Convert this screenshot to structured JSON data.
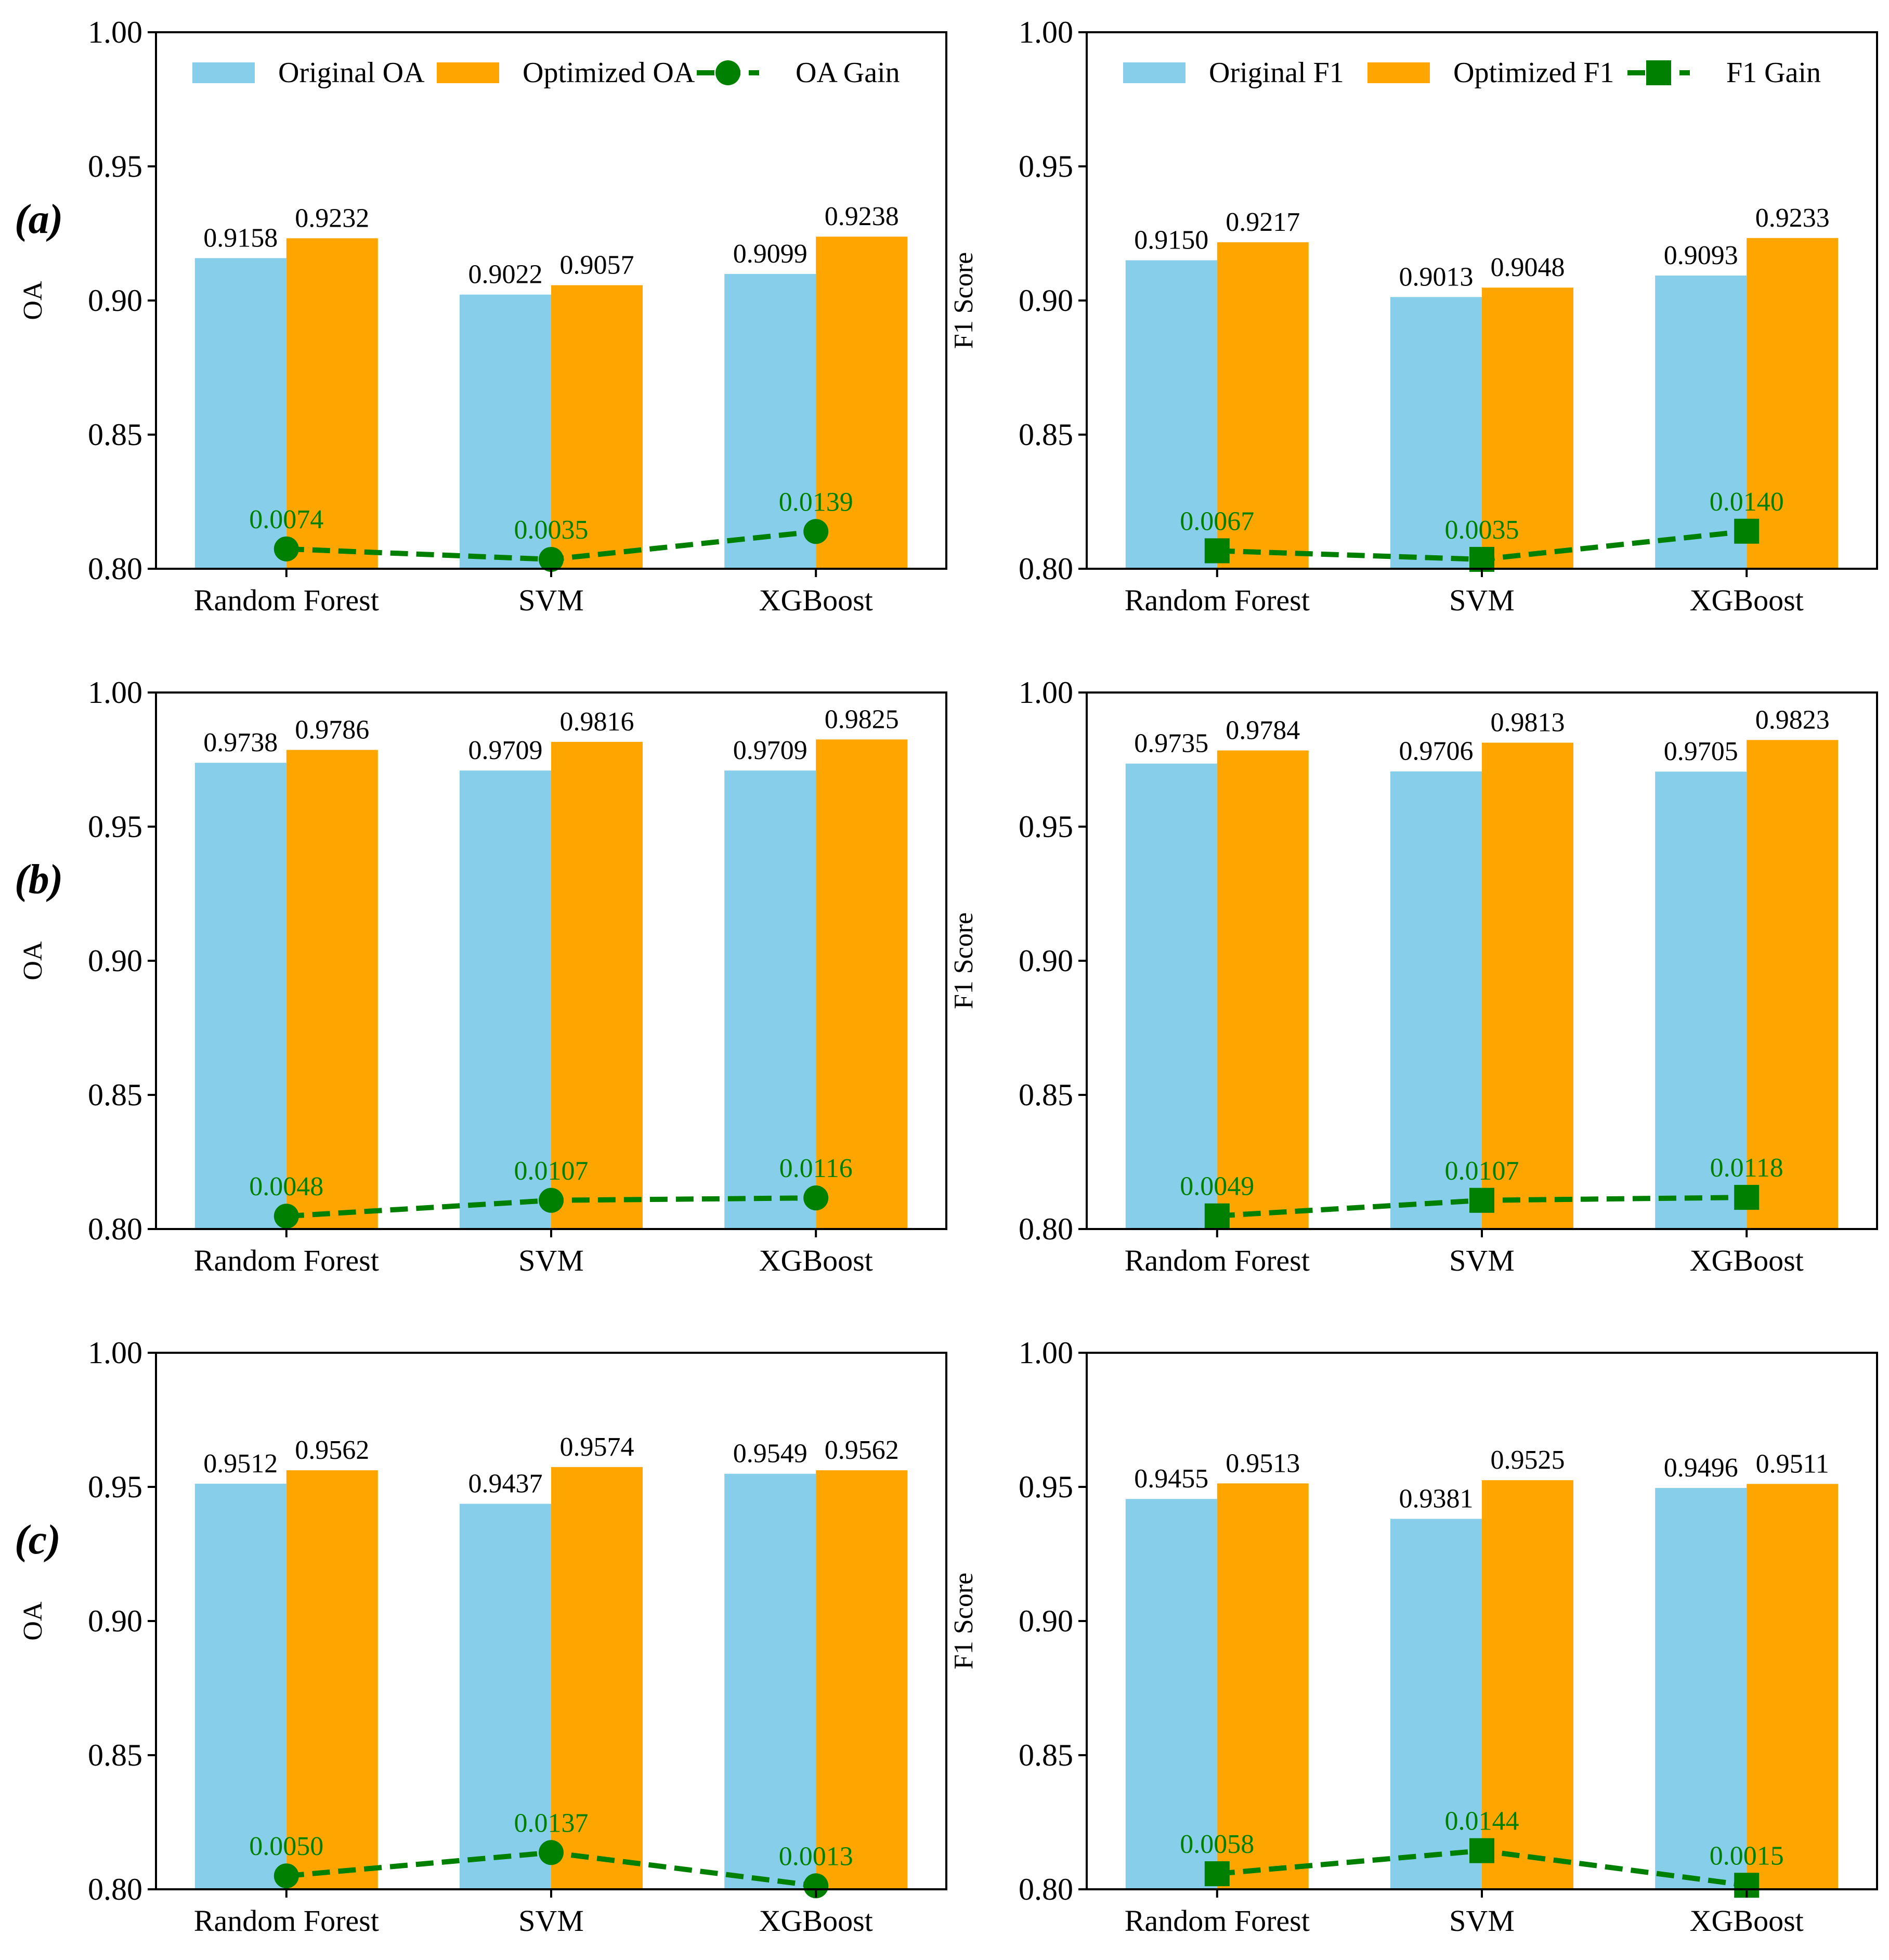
{
  "figure": {
    "panel_labels": [
      "(a)",
      "(b)",
      "(c)"
    ],
    "colors": {
      "original": "#87CEEB",
      "optimized": "#FFA500",
      "gain": "#008000",
      "axis": "#000000"
    }
  },
  "chart_data": [
    {
      "type": "bar",
      "row": 0,
      "col": 0,
      "categories": [
        "Random Forest",
        "SVM",
        "XGBoost"
      ],
      "ylabel": "OA",
      "ylim": [
        0.8,
        1.0
      ],
      "yticks": [
        "0.80",
        "0.85",
        "0.90",
        "0.95",
        "1.00"
      ],
      "legend": {
        "position": "top",
        "labels": [
          "Original OA",
          "Optimized OA",
          "OA Gain"
        ]
      },
      "series": [
        {
          "name": "Original OA",
          "values": [
            0.9158,
            0.9022,
            0.9099
          ],
          "labels": [
            "0.9158",
            "0.9022",
            "0.9099"
          ]
        },
        {
          "name": "Optimized OA",
          "values": [
            0.9232,
            0.9057,
            0.9238
          ],
          "labels": [
            "0.9232",
            "0.9057",
            "0.9238"
          ]
        }
      ],
      "gain": {
        "name": "OA Gain",
        "marker": "circle",
        "values": [
          0.0074,
          0.0035,
          0.0139
        ],
        "labels": [
          "0.0074",
          "0.0035",
          "0.0139"
        ]
      }
    },
    {
      "type": "bar",
      "row": 0,
      "col": 1,
      "categories": [
        "Random Forest",
        "SVM",
        "XGBoost"
      ],
      "ylabel": "F1 Score",
      "ylim": [
        0.8,
        1.0
      ],
      "yticks": [
        "0.80",
        "0.85",
        "0.90",
        "0.95",
        "1.00"
      ],
      "legend": {
        "position": "top",
        "labels": [
          "Original F1",
          "Optimized F1",
          "F1 Gain"
        ]
      },
      "series": [
        {
          "name": "Original F1",
          "values": [
            0.915,
            0.9013,
            0.9093
          ],
          "labels": [
            "0.9150",
            "0.9013",
            "0.9093"
          ]
        },
        {
          "name": "Optimized F1",
          "values": [
            0.9217,
            0.9048,
            0.9233
          ],
          "labels": [
            "0.9217",
            "0.9048",
            "0.9233"
          ]
        }
      ],
      "gain": {
        "name": "F1 Gain",
        "marker": "square",
        "values": [
          0.0067,
          0.0035,
          0.014
        ],
        "labels": [
          "0.0067",
          "0.0035",
          "0.0140"
        ]
      }
    },
    {
      "type": "bar",
      "row": 1,
      "col": 0,
      "categories": [
        "Random Forest",
        "SVM",
        "XGBoost"
      ],
      "ylabel": "OA",
      "ylim": [
        0.8,
        1.0
      ],
      "yticks": [
        "0.80",
        "0.85",
        "0.90",
        "0.95",
        "1.00"
      ],
      "legend": null,
      "series": [
        {
          "name": "Original OA",
          "values": [
            0.9738,
            0.9709,
            0.9709
          ],
          "labels": [
            "0.9738",
            "0.9709",
            "0.9709"
          ]
        },
        {
          "name": "Optimized OA",
          "values": [
            0.9786,
            0.9816,
            0.9825
          ],
          "labels": [
            "0.9786",
            "0.9816",
            "0.9825"
          ]
        }
      ],
      "gain": {
        "name": "OA Gain",
        "marker": "circle",
        "values": [
          0.0048,
          0.0107,
          0.0116
        ],
        "labels": [
          "0.0048",
          "0.0107",
          "0.0116"
        ]
      }
    },
    {
      "type": "bar",
      "row": 1,
      "col": 1,
      "categories": [
        "Random Forest",
        "SVM",
        "XGBoost"
      ],
      "ylabel": "F1 Score",
      "ylim": [
        0.8,
        1.0
      ],
      "yticks": [
        "0.80",
        "0.85",
        "0.90",
        "0.95",
        "1.00"
      ],
      "legend": null,
      "series": [
        {
          "name": "Original F1",
          "values": [
            0.9735,
            0.9706,
            0.9705
          ],
          "labels": [
            "0.9735",
            "0.9706",
            "0.9705"
          ]
        },
        {
          "name": "Optimized F1",
          "values": [
            0.9784,
            0.9813,
            0.9823
          ],
          "labels": [
            "0.9784",
            "0.9813",
            "0.9823"
          ]
        }
      ],
      "gain": {
        "name": "F1 Gain",
        "marker": "square",
        "values": [
          0.0049,
          0.0107,
          0.0118
        ],
        "labels": [
          "0.0049",
          "0.0107",
          "0.0118"
        ]
      }
    },
    {
      "type": "bar",
      "row": 2,
      "col": 0,
      "categories": [
        "Random Forest",
        "SVM",
        "XGBoost"
      ],
      "ylabel": "OA",
      "ylim": [
        0.8,
        1.0
      ],
      "yticks": [
        "0.80",
        "0.85",
        "0.90",
        "0.95",
        "1.00"
      ],
      "legend": null,
      "series": [
        {
          "name": "Original OA",
          "values": [
            0.9512,
            0.9437,
            0.9549
          ],
          "labels": [
            "0.9512",
            "0.9437",
            "0.9549"
          ]
        },
        {
          "name": "Optimized OA",
          "values": [
            0.9562,
            0.9574,
            0.9562
          ],
          "labels": [
            "0.9562",
            "0.9574",
            "0.9562"
          ]
        }
      ],
      "gain": {
        "name": "OA Gain",
        "marker": "circle",
        "values": [
          0.005,
          0.0137,
          0.0013
        ],
        "labels": [
          "0.0050",
          "0.0137",
          "0.0013"
        ]
      }
    },
    {
      "type": "bar",
      "row": 2,
      "col": 1,
      "categories": [
        "Random Forest",
        "SVM",
        "XGBoost"
      ],
      "ylabel": "F1 Score",
      "ylim": [
        0.8,
        1.0
      ],
      "yticks": [
        "0.80",
        "0.85",
        "0.90",
        "0.95",
        "1.00"
      ],
      "legend": null,
      "series": [
        {
          "name": "Original F1",
          "values": [
            0.9455,
            0.9381,
            0.9496
          ],
          "labels": [
            "0.9455",
            "0.9381",
            "0.9496"
          ]
        },
        {
          "name": "Optimized F1",
          "values": [
            0.9513,
            0.9525,
            0.9511
          ],
          "labels": [
            "0.9513",
            "0.9525",
            "0.9511"
          ]
        }
      ],
      "gain": {
        "name": "F1 Gain",
        "marker": "square",
        "values": [
          0.0058,
          0.0144,
          0.0015
        ],
        "labels": [
          "0.0058",
          "0.0144",
          "0.0015"
        ]
      }
    }
  ]
}
